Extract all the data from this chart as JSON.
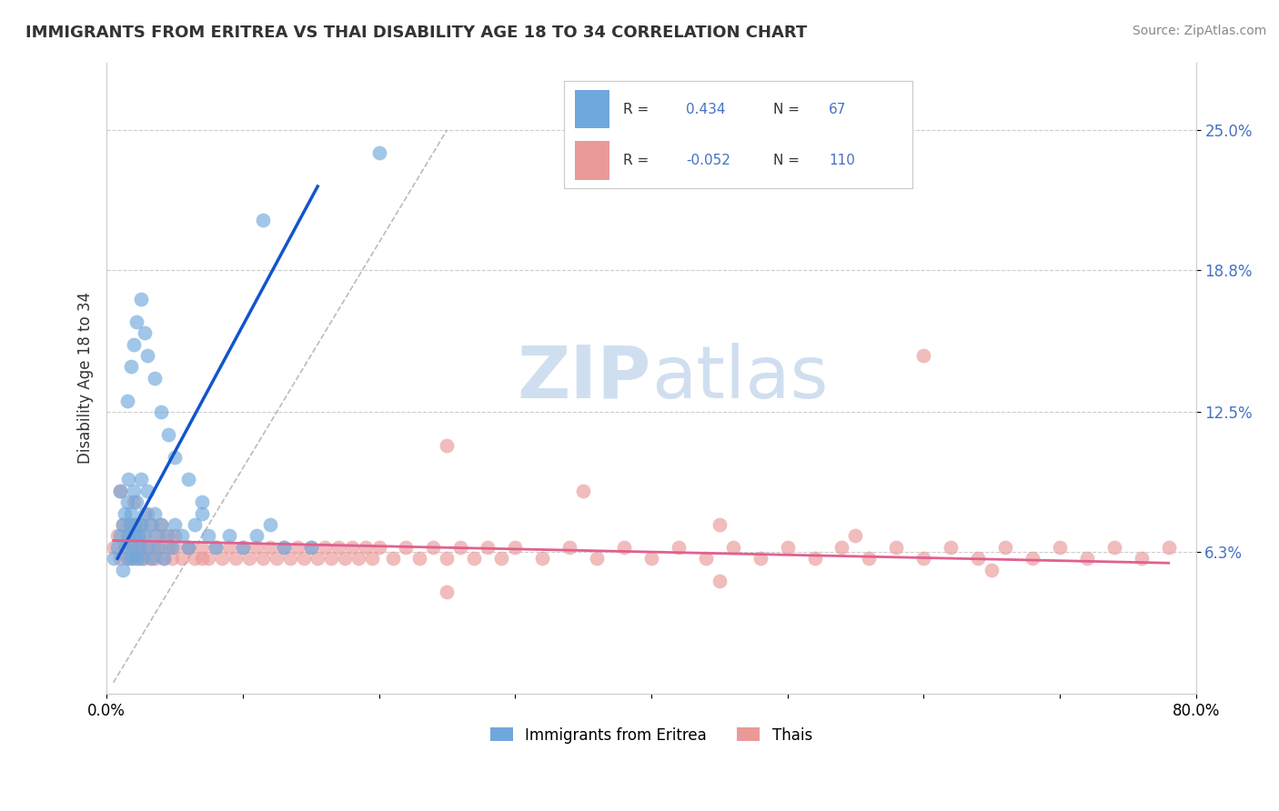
{
  "title": "IMMIGRANTS FROM ERITREA VS THAI DISABILITY AGE 18 TO 34 CORRELATION CHART",
  "source": "Source: ZipAtlas.com",
  "ylabel": "Disability Age 18 to 34",
  "xlim": [
    0.0,
    0.8
  ],
  "ylim": [
    0.0,
    0.28
  ],
  "ytick_positions": [
    0.063,
    0.125,
    0.188,
    0.25
  ],
  "yticklabels": [
    "6.3%",
    "12.5%",
    "18.8%",
    "25.0%"
  ],
  "legend1_r": "0.434",
  "legend1_n": "67",
  "legend2_r": "-0.052",
  "legend2_n": "110",
  "blue_color": "#6fa8dc",
  "pink_color": "#ea9999",
  "blue_line_color": "#1155cc",
  "pink_line_color": "#e06090",
  "legend_text_color": "#4472c4",
  "watermark_color": "#d0dff0",
  "blue_scatter_x": [
    0.005,
    0.008,
    0.01,
    0.01,
    0.012,
    0.012,
    0.013,
    0.014,
    0.015,
    0.015,
    0.016,
    0.016,
    0.017,
    0.018,
    0.018,
    0.019,
    0.02,
    0.02,
    0.021,
    0.022,
    0.022,
    0.023,
    0.024,
    0.025,
    0.025,
    0.026,
    0.027,
    0.028,
    0.03,
    0.03,
    0.032,
    0.033,
    0.035,
    0.036,
    0.038,
    0.04,
    0.042,
    0.045,
    0.048,
    0.05,
    0.055,
    0.06,
    0.065,
    0.07,
    0.075,
    0.08,
    0.09,
    0.1,
    0.11,
    0.12,
    0.13,
    0.15,
    0.015,
    0.018,
    0.02,
    0.022,
    0.025,
    0.028,
    0.03,
    0.035,
    0.04,
    0.045,
    0.05,
    0.06,
    0.07,
    0.115,
    0.2
  ],
  "blue_scatter_y": [
    0.06,
    0.065,
    0.07,
    0.09,
    0.055,
    0.075,
    0.08,
    0.065,
    0.06,
    0.085,
    0.07,
    0.095,
    0.075,
    0.06,
    0.08,
    0.065,
    0.07,
    0.09,
    0.075,
    0.06,
    0.085,
    0.07,
    0.065,
    0.075,
    0.095,
    0.06,
    0.07,
    0.08,
    0.065,
    0.09,
    0.075,
    0.06,
    0.08,
    0.07,
    0.065,
    0.075,
    0.06,
    0.07,
    0.065,
    0.075,
    0.07,
    0.065,
    0.075,
    0.08,
    0.07,
    0.065,
    0.07,
    0.065,
    0.07,
    0.075,
    0.065,
    0.065,
    0.13,
    0.145,
    0.155,
    0.165,
    0.175,
    0.16,
    0.15,
    0.14,
    0.125,
    0.115,
    0.105,
    0.095,
    0.085,
    0.21,
    0.24
  ],
  "pink_scatter_x": [
    0.005,
    0.008,
    0.01,
    0.012,
    0.013,
    0.015,
    0.016,
    0.017,
    0.018,
    0.019,
    0.02,
    0.021,
    0.022,
    0.023,
    0.024,
    0.025,
    0.026,
    0.027,
    0.028,
    0.03,
    0.032,
    0.033,
    0.035,
    0.036,
    0.038,
    0.04,
    0.042,
    0.044,
    0.046,
    0.048,
    0.05,
    0.055,
    0.06,
    0.065,
    0.07,
    0.075,
    0.08,
    0.085,
    0.09,
    0.095,
    0.1,
    0.105,
    0.11,
    0.115,
    0.12,
    0.125,
    0.13,
    0.135,
    0.14,
    0.145,
    0.15,
    0.155,
    0.16,
    0.165,
    0.17,
    0.175,
    0.18,
    0.185,
    0.19,
    0.195,
    0.2,
    0.21,
    0.22,
    0.23,
    0.24,
    0.25,
    0.26,
    0.27,
    0.28,
    0.29,
    0.3,
    0.32,
    0.34,
    0.36,
    0.38,
    0.4,
    0.42,
    0.44,
    0.46,
    0.48,
    0.5,
    0.52,
    0.54,
    0.56,
    0.58,
    0.6,
    0.62,
    0.64,
    0.66,
    0.68,
    0.7,
    0.72,
    0.74,
    0.76,
    0.78,
    0.25,
    0.35,
    0.45,
    0.55,
    0.65,
    0.01,
    0.02,
    0.03,
    0.04,
    0.05,
    0.06,
    0.07,
    0.25,
    0.45,
    0.6
  ],
  "pink_scatter_y": [
    0.065,
    0.07,
    0.06,
    0.075,
    0.065,
    0.07,
    0.06,
    0.075,
    0.065,
    0.07,
    0.06,
    0.075,
    0.065,
    0.07,
    0.06,
    0.075,
    0.065,
    0.06,
    0.07,
    0.065,
    0.06,
    0.075,
    0.065,
    0.06,
    0.07,
    0.065,
    0.06,
    0.07,
    0.065,
    0.06,
    0.065,
    0.06,
    0.065,
    0.06,
    0.065,
    0.06,
    0.065,
    0.06,
    0.065,
    0.06,
    0.065,
    0.06,
    0.065,
    0.06,
    0.065,
    0.06,
    0.065,
    0.06,
    0.065,
    0.06,
    0.065,
    0.06,
    0.065,
    0.06,
    0.065,
    0.06,
    0.065,
    0.06,
    0.065,
    0.06,
    0.065,
    0.06,
    0.065,
    0.06,
    0.065,
    0.06,
    0.065,
    0.06,
    0.065,
    0.06,
    0.065,
    0.06,
    0.065,
    0.06,
    0.065,
    0.06,
    0.065,
    0.06,
    0.065,
    0.06,
    0.065,
    0.06,
    0.065,
    0.06,
    0.065,
    0.06,
    0.065,
    0.06,
    0.065,
    0.06,
    0.065,
    0.06,
    0.065,
    0.06,
    0.065,
    0.11,
    0.09,
    0.075,
    0.07,
    0.055,
    0.09,
    0.085,
    0.08,
    0.075,
    0.07,
    0.065,
    0.06,
    0.045,
    0.05,
    0.15
  ]
}
